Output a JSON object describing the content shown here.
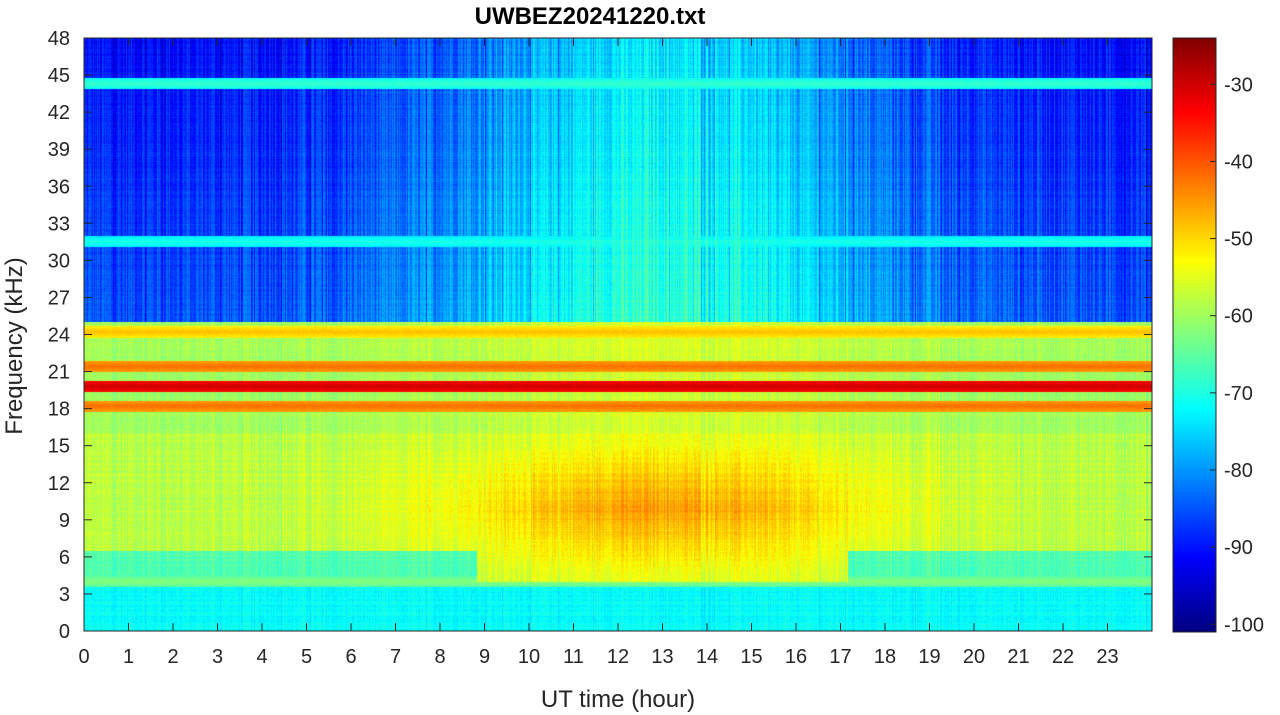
{
  "chart_data": {
    "type": "heatmap",
    "title": "UWBEZ20241220.txt",
    "xlabel": "UT time (hour)",
    "ylabel": "Frequency (kHz)",
    "xlim": [
      0,
      24
    ],
    "ylim": [
      0,
      48
    ],
    "x_ticks": [
      0,
      1,
      2,
      3,
      4,
      5,
      6,
      7,
      8,
      9,
      10,
      11,
      12,
      13,
      14,
      15,
      16,
      17,
      18,
      19,
      20,
      21,
      22,
      23
    ],
    "y_ticks": [
      0,
      3,
      6,
      9,
      12,
      15,
      18,
      21,
      24,
      27,
      30,
      33,
      36,
      39,
      42,
      45,
      48
    ],
    "colorbar": {
      "colormap": "jet",
      "range": [
        -101,
        -24
      ],
      "ticks": [
        -100,
        -90,
        -80,
        -70,
        -60,
        -50,
        -40,
        -30
      ]
    },
    "features": {
      "background_low_freq_db": -72,
      "high_freq_db_night": -85,
      "high_freq_db_day": -68,
      "vlf_band": {
        "f_low_kHz": 4,
        "f_high_kHz": 16,
        "peak_db": -45,
        "peak_hours": [
          9,
          17
        ]
      },
      "transmitter_lines": [
        {
          "freq_kHz": 19.8,
          "level_db": -30
        },
        {
          "freq_kHz": 18.2,
          "level_db": -42
        },
        {
          "freq_kHz": 21.4,
          "level_db": -42
        },
        {
          "freq_kHz": 24.2,
          "level_db": -48
        },
        {
          "freq_kHz": 44.3,
          "level_db": -68
        },
        {
          "freq_kHz": 31.5,
          "level_db": -70
        },
        {
          "freq_kHz": 4.0,
          "level_db": -62
        }
      ]
    }
  }
}
